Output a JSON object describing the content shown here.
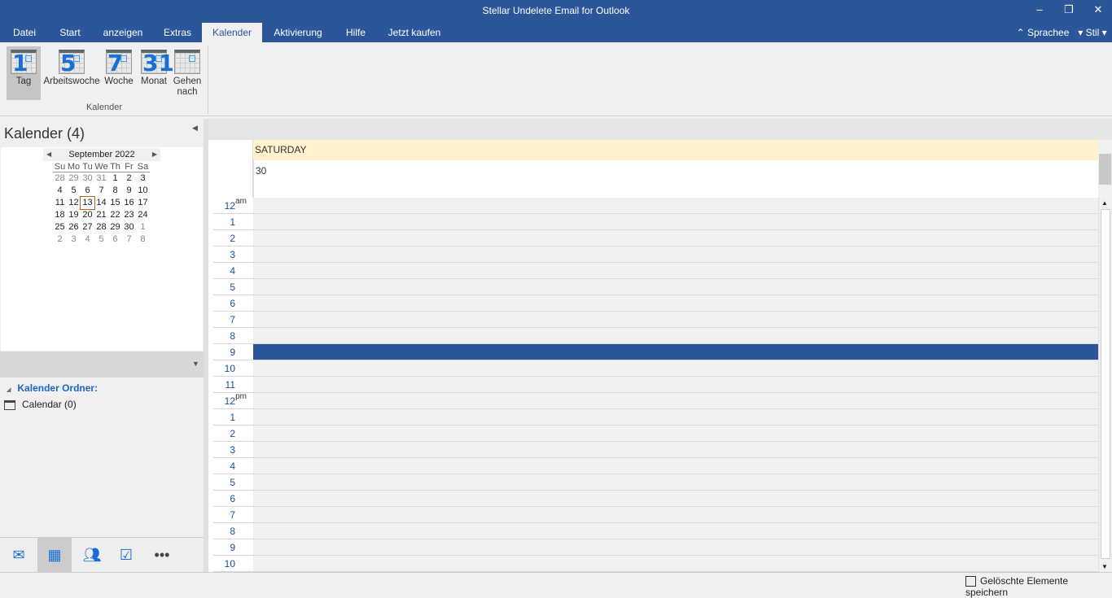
{
  "window": {
    "title": "Stellar Undelete Email for Outlook"
  },
  "tabs": [
    "Datei",
    "Start",
    "anzeigen",
    "Extras",
    "Kalender",
    "Aktivierung",
    "Hilfe",
    "Jetzt kaufen"
  ],
  "right_menu": {
    "language": "Sprachee",
    "style": "Stil"
  },
  "ribbon": {
    "buttons": [
      {
        "label": "Tag",
        "num": "1"
      },
      {
        "label": "Arbeitswoche",
        "num": "5"
      },
      {
        "label": "Woche",
        "num": "7"
      },
      {
        "label": "Monat",
        "num": "31"
      },
      {
        "label": "Gehen nach",
        "num": ""
      }
    ],
    "group_label": "Kalender"
  },
  "left": {
    "title": "Kalender (4)",
    "folder_header": "Kalender Ordner:",
    "folders": [
      {
        "name": "Calendar (0)"
      }
    ]
  },
  "minical": {
    "month": "September 2022",
    "days": [
      "Su",
      "Mo",
      "Tu",
      "We",
      "Th",
      "Fr",
      "Sa"
    ],
    "weeks": [
      [
        "28",
        "29",
        "30",
        "31",
        "1",
        "2",
        "3"
      ],
      [
        "4",
        "5",
        "6",
        "7",
        "8",
        "9",
        "10"
      ],
      [
        "11",
        "12",
        "13",
        "14",
        "15",
        "16",
        "17"
      ],
      [
        "18",
        "19",
        "20",
        "21",
        "22",
        "23",
        "24"
      ],
      [
        "25",
        "26",
        "27",
        "28",
        "29",
        "30",
        "1"
      ],
      [
        "2",
        "3",
        "4",
        "5",
        "6",
        "7",
        "8"
      ]
    ],
    "today": "13"
  },
  "day_view": {
    "weekday": "SATURDAY",
    "date": "30",
    "hours": [
      {
        "h": "12",
        "s": "am"
      },
      {
        "h": "1"
      },
      {
        "h": "2"
      },
      {
        "h": "3"
      },
      {
        "h": "4"
      },
      {
        "h": "5"
      },
      {
        "h": "6"
      },
      {
        "h": "7"
      },
      {
        "h": "8"
      },
      {
        "h": "9"
      },
      {
        "h": "10"
      },
      {
        "h": "11"
      },
      {
        "h": "12",
        "s": "pm"
      },
      {
        "h": "1"
      },
      {
        "h": "2"
      },
      {
        "h": "3"
      },
      {
        "h": "4"
      },
      {
        "h": "5"
      },
      {
        "h": "6"
      },
      {
        "h": "7"
      },
      {
        "h": "8"
      },
      {
        "h": "9"
      },
      {
        "h": "10"
      }
    ],
    "selected_hour_index": 9,
    "highlight_color": "#2b579a"
  },
  "nav": [
    "mail-icon",
    "calendar-icon",
    "people-icon",
    "tasks-icon",
    "more-icon"
  ],
  "status": {
    "save_label": "Gelöschte Elemente speichern"
  }
}
